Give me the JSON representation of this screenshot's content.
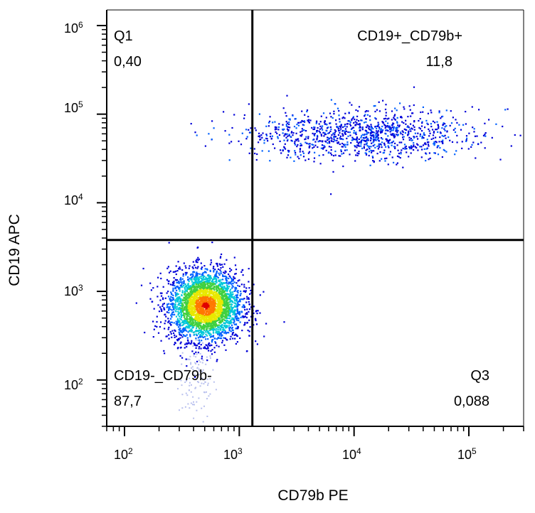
{
  "chart_data": {
    "type": "scatter",
    "xlabel": "CD79b PE",
    "ylabel": "CD19 APC",
    "x_scale": "log",
    "y_scale": "log",
    "xlim": [
      70,
      300000
    ],
    "ylim": [
      30,
      1500000
    ],
    "x_ticks": [
      {
        "base": "10",
        "exp": "2",
        "value": 100
      },
      {
        "base": "10",
        "exp": "3",
        "value": 1000
      },
      {
        "base": "10",
        "exp": "4",
        "value": 10000
      },
      {
        "base": "10",
        "exp": "5",
        "value": 100000
      }
    ],
    "y_ticks": [
      {
        "base": "10",
        "exp": "2",
        "value": 100
      },
      {
        "base": "10",
        "exp": "3",
        "value": 1000
      },
      {
        "base": "10",
        "exp": "4",
        "value": 10000
      },
      {
        "base": "10",
        "exp": "5",
        "value": 100000
      },
      {
        "base": "10",
        "exp": "6",
        "value": 1000000
      }
    ],
    "gates": {
      "x_threshold": 1300,
      "y_threshold": 3800
    },
    "quadrants": [
      {
        "id": "upper-left",
        "name": "Q1",
        "value": "0,40"
      },
      {
        "id": "upper-right",
        "name": "CD19+_CD79b+",
        "value": "11,8"
      },
      {
        "id": "lower-left",
        "name": "CD19-_CD79b-",
        "value": "87,7"
      },
      {
        "id": "lower-right",
        "name": "Q3",
        "value": "0,088"
      }
    ],
    "populations": [
      {
        "name": "CD19-_CD79b-",
        "x_center": 500,
        "y_center": 700,
        "x_log_sd": 0.16,
        "y_log_sd": 0.2,
        "points": 3200
      },
      {
        "name": "CD19+_CD79b+",
        "x_center": 12000,
        "y_center": 60000,
        "x_log_sd": 0.5,
        "y_log_sd": 0.14,
        "points": 1100
      }
    ],
    "color_scale": [
      "#0000d8",
      "#0060ff",
      "#00c8d8",
      "#40d040",
      "#e8e800",
      "#ff7800",
      "#e00000"
    ],
    "grid": false
  }
}
